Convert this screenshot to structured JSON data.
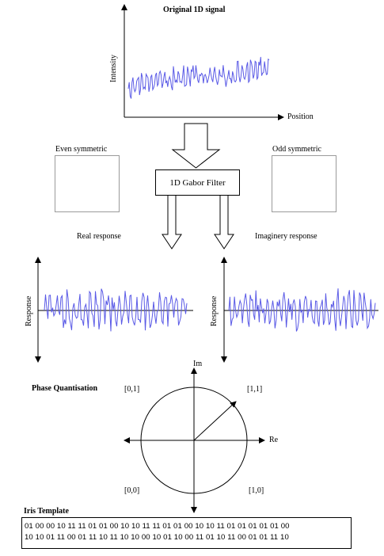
{
  "original_signal": {
    "title": "Original 1D signal",
    "ylabel": "Intensity",
    "xlabel": "Position"
  },
  "filter": {
    "label": "1D Gabor Filter",
    "even_label": "Even symmetric",
    "odd_label": "Odd symmetric"
  },
  "responses": {
    "real_title": "Real response",
    "imag_title": "Imaginery response",
    "real_ylabel": "Response",
    "imag_ylabel": "Response"
  },
  "phase": {
    "title": "Phase Quantisation",
    "im_label": "Im",
    "re_label": "Re",
    "q_top_left": "[0,1]",
    "q_top_right": "[1,1]",
    "q_bottom_left": "[0,0]",
    "q_bottom_right": "[1,0]"
  },
  "template": {
    "title": "Iris Template",
    "row1": "01 00 00 10 11 11 01 01 00 10 10 11 11 01 01 00 10 10 11 01 01 01 01 01 00",
    "row2": "10 10 01 11 00 01 11 10 11 10 10 00 10 01 10 00 11 01 10 11 00 01 01 11 10"
  },
  "colors": {
    "signal": "#5a5ae6",
    "axis": "#000000",
    "box_border": "#9a9a9a"
  }
}
